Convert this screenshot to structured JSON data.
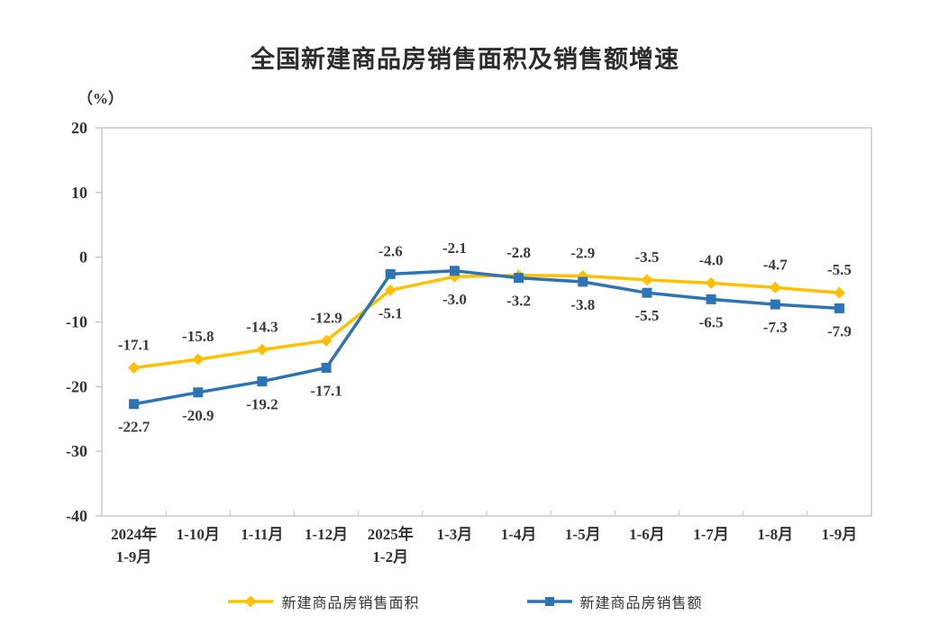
{
  "chart_data": {
    "type": "line",
    "title": "全国新建商品房销售面积及销售额增速",
    "unit_label": "（%）",
    "categories": [
      [
        "2024年",
        "1-9月"
      ],
      [
        "1-10月"
      ],
      [
        "1-11月"
      ],
      [
        "1-12月"
      ],
      [
        "2025年",
        "1-2月"
      ],
      [
        "1-3月"
      ],
      [
        "1-4月"
      ],
      [
        "1-5月"
      ],
      [
        "1-6月"
      ],
      [
        "1-7月"
      ],
      [
        "1-8月"
      ],
      [
        "1-9月"
      ]
    ],
    "ylim": [
      -40,
      20
    ],
    "yticks": [
      20,
      10,
      0,
      -10,
      -20,
      -30,
      -40
    ],
    "grid": false,
    "legend_position": "bottom",
    "axis_color": "#c9c9c9",
    "series": [
      {
        "id": "sales-area",
        "name": "新建商品房销售面积",
        "color": "#FFC000",
        "marker": "diamond",
        "values": [
          -17.1,
          -15.8,
          -14.3,
          -12.9,
          -5.1,
          -3.0,
          -2.8,
          -2.9,
          -3.5,
          -4.0,
          -4.7,
          -5.5
        ],
        "label_side": [
          "above",
          "above",
          "above",
          "above",
          "below",
          "below",
          "above",
          "above",
          "above",
          "above",
          "above",
          "above"
        ]
      },
      {
        "id": "sales-value",
        "name": "新建商品房销售额",
        "color": "#2E74B5",
        "marker": "square",
        "values": [
          -22.7,
          -20.9,
          -19.2,
          -17.1,
          -2.6,
          -2.1,
          -3.2,
          -3.8,
          -5.5,
          -6.5,
          -7.3,
          -7.9
        ],
        "label_side": [
          "below",
          "below",
          "below",
          "below",
          "above",
          "above",
          "below",
          "below",
          "below",
          "below",
          "below",
          "below"
        ]
      }
    ]
  }
}
